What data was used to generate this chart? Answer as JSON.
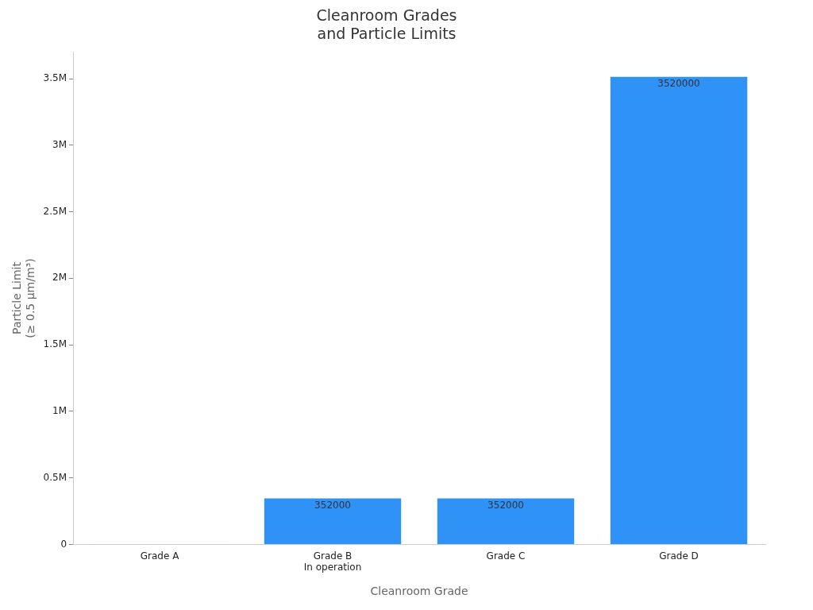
{
  "chart_data": {
    "type": "bar",
    "title": "Cleanroom Grades\nand Particle Limits",
    "xlabel": "Cleanroom Grade",
    "ylabel": "Particle Limit\n(≥ 0.5 µm/m³)",
    "categories": [
      "Grade A",
      "Grade B\nIn operation",
      "Grade C",
      "Grade D"
    ],
    "values": [
      3520,
      352000,
      352000,
      3520000
    ],
    "colors": [
      "#add8e6",
      "#2f92f7",
      "#2f92f7",
      "#2f92f7"
    ],
    "value_labels": [
      null,
      "352000",
      "352000",
      "3520000"
    ],
    "ylim": [
      0,
      3700000
    ],
    "yticks": [
      {
        "value": 0,
        "label": "0"
      },
      {
        "value": 500000,
        "label": "0.5M"
      },
      {
        "value": 1000000,
        "label": "1M"
      },
      {
        "value": 1500000,
        "label": "1.5M"
      },
      {
        "value": 2000000,
        "label": "2M"
      },
      {
        "value": 2500000,
        "label": "2.5M"
      },
      {
        "value": 3000000,
        "label": "3M"
      },
      {
        "value": 3500000,
        "label": "3.5M"
      }
    ],
    "grid": false,
    "legend": false
  }
}
